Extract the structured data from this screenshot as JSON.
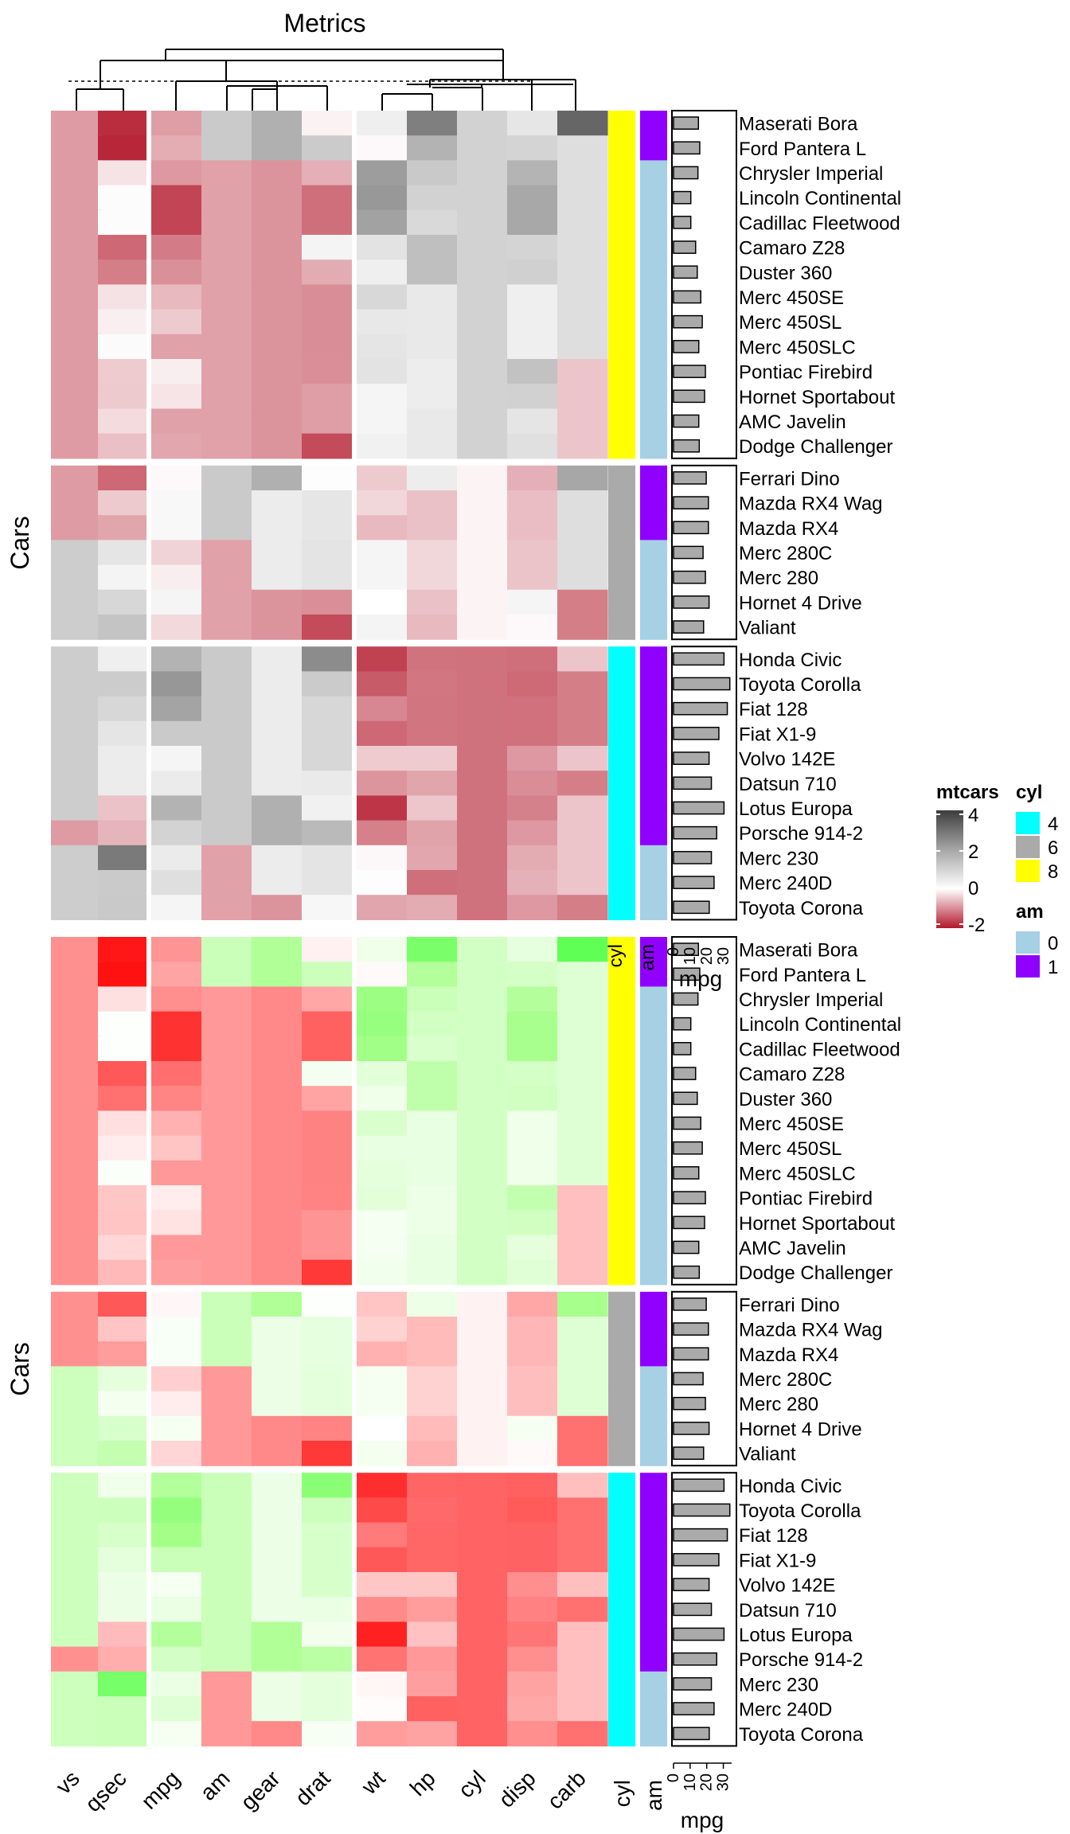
{
  "chart_data": {
    "type": "heatmap",
    "title": "Metrics",
    "row_axis_label": "Cars",
    "columns": [
      "vs",
      "qsec",
      "mpg",
      "am",
      "gear",
      "drat",
      "wt",
      "hp",
      "cyl",
      "disp",
      "carb"
    ],
    "column_groups": [
      [
        "vs",
        "qsec"
      ],
      [
        "mpg",
        "am",
        "gear",
        "drat"
      ],
      [
        "wt",
        "hp",
        "cyl",
        "disp",
        "carb"
      ]
    ],
    "row_groups": [
      {
        "cyl": 8,
        "rows": [
          {
            "car": "Maserati Bora",
            "am": 1,
            "mpg": 15.0,
            "scaled": [
              -0.87,
              -1.82,
              -0.84,
              1.19,
              1.78,
              -0.11,
              0.36,
              2.75,
              1.01,
              0.57,
              3.21
            ]
          },
          {
            "car": "Ford Pantera L",
            "am": 1,
            "mpg": 15.8,
            "scaled": [
              -0.87,
              -1.87,
              -0.71,
              1.19,
              1.78,
              1.16,
              -0.05,
              1.71,
              1.01,
              0.97,
              0.74
            ]
          },
          {
            "car": "Chrysler Imperial",
            "am": 0,
            "mpg": 14.7,
            "scaled": [
              -0.87,
              -0.24,
              -0.89,
              -0.81,
              -0.93,
              -0.69,
              2.17,
              1.22,
              1.01,
              1.69,
              0.74
            ]
          },
          {
            "car": "Lincoln Continental",
            "am": 0,
            "mpg": 10.4,
            "scaled": [
              -0.87,
              0.07,
              -1.61,
              -0.81,
              -0.93,
              -1.25,
              2.26,
              1.01,
              1.01,
              1.95,
              0.74
            ]
          },
          {
            "car": "Cadillac Fleetwood",
            "am": 0,
            "mpg": 10.4,
            "scaled": [
              -0.87,
              0.07,
              -1.61,
              -0.81,
              -0.93,
              -1.25,
              2.08,
              0.85,
              1.01,
              1.95,
              0.74
            ]
          },
          {
            "car": "Camaro Z28",
            "am": 0,
            "mpg": 13.3,
            "scaled": [
              -0.87,
              -1.31,
              -1.13,
              -0.81,
              -0.93,
              0.24,
              0.64,
              1.43,
              1.01,
              0.97,
              0.74
            ]
          },
          {
            "car": "Duster 360",
            "am": 0,
            "mpg": 14.3,
            "scaled": [
              -0.87,
              -1.12,
              -0.96,
              -0.81,
              -0.93,
              -0.72,
              0.36,
              1.43,
              1.01,
              1.06,
              0.74
            ]
          },
          {
            "car": "Merc 450SE",
            "am": 0,
            "mpg": 16.4,
            "scaled": [
              -0.87,
              -0.25,
              -0.61,
              -0.81,
              -0.93,
              -0.98,
              0.87,
              0.49,
              1.01,
              0.36,
              0.74
            ]
          },
          {
            "car": "Merc 450SL",
            "am": 0,
            "mpg": 17.3,
            "scaled": [
              -0.87,
              -0.14,
              -0.46,
              -0.81,
              -0.93,
              -0.98,
              0.52,
              0.49,
              1.01,
              0.36,
              0.74
            ]
          },
          {
            "car": "Merc 450SLC",
            "am": 0,
            "mpg": 15.2,
            "scaled": [
              -0.87,
              0.08,
              -0.81,
              -0.81,
              -0.93,
              -0.98,
              0.58,
              0.49,
              1.01,
              0.36,
              0.74
            ]
          },
          {
            "car": "Pontiac Firebird",
            "am": 0,
            "mpg": 19.2,
            "scaled": [
              -0.87,
              -0.45,
              -0.15,
              -0.81,
              -0.93,
              -0.97,
              0.64,
              0.41,
              1.01,
              1.37,
              -0.5
            ]
          },
          {
            "car": "Hornet Sportabout",
            "am": 0,
            "mpg": 18.7,
            "scaled": [
              -0.87,
              -0.46,
              -0.23,
              -0.81,
              -0.93,
              -0.84,
              0.23,
              0.41,
              1.01,
              1.04,
              -0.5
            ]
          },
          {
            "car": "AMC Javelin",
            "am": 0,
            "mpg": 15.2,
            "scaled": [
              -0.87,
              -0.31,
              -0.81,
              -0.81,
              -0.93,
              -0.84,
              0.23,
              0.49,
              1.01,
              0.59,
              -0.5
            ]
          },
          {
            "car": "Dodge Challenger",
            "am": 0,
            "mpg": 15.5,
            "scaled": [
              -0.87,
              -0.55,
              -0.76,
              -0.81,
              -0.93,
              -1.56,
              0.31,
              0.49,
              1.01,
              0.7,
              -0.5
            ]
          }
        ]
      },
      {
        "cyl": 6,
        "rows": [
          {
            "car": "Ferrari Dino",
            "am": 1,
            "mpg": 19.7,
            "scaled": [
              -0.87,
              -1.31,
              -0.06,
              1.19,
              1.78,
              0.04,
              -0.46,
              0.41,
              -0.1,
              -0.69,
              1.97
            ]
          },
          {
            "car": "Mazda RX4 Wag",
            "am": 1,
            "mpg": 21.0,
            "scaled": [
              -0.87,
              -0.46,
              0.15,
              1.19,
              0.42,
              0.57,
              -0.35,
              -0.54,
              -0.1,
              -0.57,
              0.74
            ]
          },
          {
            "car": "Mazda RX4",
            "am": 1,
            "mpg": 21.0,
            "scaled": [
              -0.87,
              -0.78,
              0.15,
              1.19,
              0.42,
              0.57,
              -0.61,
              -0.54,
              -0.1,
              -0.57,
              0.74
            ]
          },
          {
            "car": "Merc 280C",
            "am": 0,
            "mpg": 17.8,
            "scaled": [
              1.12,
              0.59,
              -0.38,
              -0.81,
              0.42,
              0.6,
              0.23,
              -0.35,
              -0.1,
              -0.51,
              0.74
            ]
          },
          {
            "car": "Merc 280",
            "am": 0,
            "mpg": 19.2,
            "scaled": [
              1.12,
              0.25,
              -0.15,
              -0.81,
              0.42,
              0.6,
              0.23,
              -0.35,
              -0.1,
              -0.51,
              0.74
            ]
          },
          {
            "car": "Hornet 4 Drive",
            "am": 0,
            "mpg": 21.4,
            "scaled": [
              1.12,
              0.89,
              0.22,
              -0.81,
              -0.93,
              -0.97,
              -0.0,
              -0.54,
              -0.1,
              0.22,
              -1.12
            ]
          },
          {
            "car": "Valiant",
            "am": 0,
            "mpg": 18.1,
            "scaled": [
              1.12,
              1.33,
              -0.33,
              -0.81,
              -0.93,
              -1.56,
              0.25,
              -0.61,
              -0.1,
              -0.05,
              -1.12
            ]
          }
        ]
      },
      {
        "cyl": 4,
        "rows": [
          {
            "car": "Honda Civic",
            "am": 1,
            "mpg": 30.4,
            "scaled": [
              1.12,
              0.37,
              1.71,
              1.19,
              0.42,
              2.49,
              -1.64,
              -1.21,
              -1.22,
              -1.25,
              -0.5
            ]
          },
          {
            "car": "Toyota Corolla",
            "am": 1,
            "mpg": 33.9,
            "scaled": [
              1.12,
              1.15,
              2.29,
              1.19,
              0.42,
              1.17,
              -1.42,
              -1.18,
              -1.22,
              -1.29,
              -1.12
            ]
          },
          {
            "car": "Fiat 128",
            "am": 1,
            "mpg": 32.4,
            "scaled": [
              1.12,
              0.91,
              2.04,
              1.19,
              0.42,
              0.91,
              -1.04,
              -1.19,
              -1.22,
              -1.23,
              -1.12
            ]
          },
          {
            "car": "Fiat X1-9",
            "am": 1,
            "mpg": 27.3,
            "scaled": [
              1.12,
              0.59,
              1.2,
              1.19,
              0.42,
              0.91,
              -1.31,
              -1.19,
              -1.22,
              -1.23,
              -1.12
            ]
          },
          {
            "car": "Volvo 142E",
            "am": 1,
            "mpg": 21.4,
            "scaled": [
              1.12,
              0.42,
              0.22,
              1.19,
              0.42,
              0.91,
              -0.45,
              -0.45,
              -1.22,
              -0.89,
              -0.5
            ]
          },
          {
            "car": "Datsun 710",
            "am": 1,
            "mpg": 22.8,
            "scaled": [
              1.12,
              0.43,
              0.45,
              1.19,
              0.42,
              0.47,
              -0.92,
              -0.78,
              -1.22,
              -0.99,
              -1.12
            ]
          },
          {
            "car": "Lotus Europa",
            "am": 1,
            "mpg": 30.4,
            "scaled": [
              1.12,
              -0.53,
              1.71,
              1.19,
              1.78,
              0.32,
              -1.74,
              -0.49,
              -1.22,
              -1.09,
              -0.5
            ]
          },
          {
            "car": "Porsche 914-2",
            "am": 1,
            "mpg": 26.0,
            "scaled": [
              -0.87,
              -0.64,
              0.98,
              1.19,
              1.78,
              1.56,
              -1.1,
              -0.8,
              -1.22,
              -0.89,
              -0.5
            ]
          },
          {
            "car": "Merc 230",
            "am": 0,
            "mpg": 22.8,
            "scaled": [
              1.12,
              2.83,
              0.45,
              -0.81,
              0.42,
              0.6,
              -0.07,
              -0.76,
              -1.22,
              -0.73,
              -0.5
            ]
          },
          {
            "car": "Merc 240D",
            "am": 0,
            "mpg": 24.4,
            "scaled": [
              1.12,
              1.2,
              0.72,
              -0.81,
              0.42,
              0.6,
              -0.02,
              -1.25,
              -1.22,
              -0.68,
              -0.5
            ]
          },
          {
            "car": "Toyota Corona",
            "am": 0,
            "mpg": 21.5,
            "scaled": [
              1.12,
              1.21,
              0.23,
              -0.81,
              -0.93,
              0.19,
              -0.77,
              -0.73,
              -1.22,
              -0.89,
              -1.12
            ]
          }
        ]
      }
    ],
    "annotation_labels": {
      "cyl": "cyl",
      "am": "am",
      "mpg": "mpg"
    },
    "mpg_bar_ticks": [
      0,
      10,
      20,
      30
    ],
    "cyl_colors": {
      "4": "#00FFFF",
      "6": "#AAAAAA",
      "8": "#FFFF00"
    },
    "am_colors": {
      "0": "#A6D0E4",
      "1": "#9000FF"
    },
    "heatmap1_scale": {
      "stops": [
        -2,
        0,
        2,
        4
      ],
      "colors": [
        "#B2182B",
        "#FFFFFF",
        "#A6A6A6",
        "#3D3D3D"
      ]
    },
    "heatmap2_scale": {
      "stops": [
        -2,
        0,
        2,
        4
      ],
      "colors": [
        "#FF0000",
        "#FFFFFF",
        "#A6FF8A",
        "#33FF33"
      ]
    }
  },
  "legend": {
    "mtcars": {
      "title": "mtcars",
      "ticks": [
        "4",
        "2",
        "0",
        "-2"
      ]
    },
    "cyl": {
      "title": "cyl",
      "items": [
        "4",
        "6",
        "8"
      ]
    },
    "am": {
      "title": "am",
      "items": [
        "0",
        "1"
      ]
    }
  },
  "overlapped_labels": [
    "cyl",
    "am",
    "mpg",
    "0",
    "10",
    "20",
    "30"
  ]
}
